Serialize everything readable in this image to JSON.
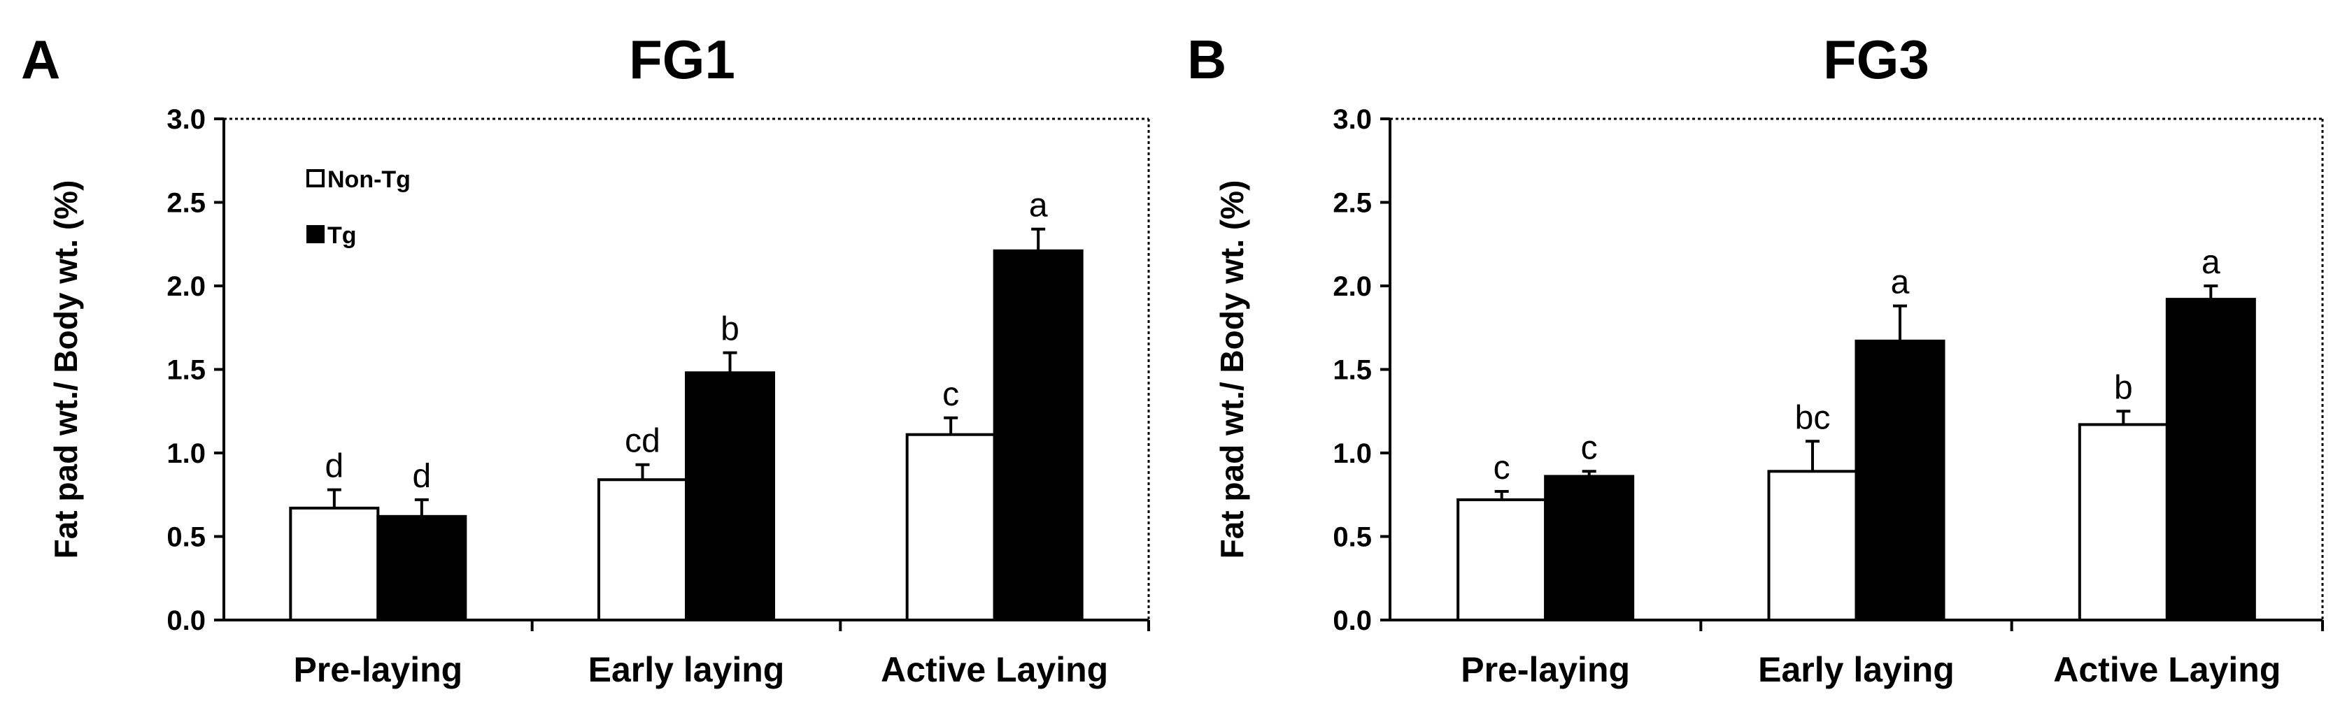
{
  "colors": {
    "non_tg_fill": "#ffffff",
    "tg_fill": "#000000",
    "axis": "#000000"
  },
  "chart_data": [
    {
      "panel_letter": "A",
      "type": "bar",
      "title": "FG1",
      "xlabel": "",
      "ylabel": "Fat pad wt./ Body wt. (%)",
      "ylim": [
        0,
        3.0
      ],
      "yticks": [
        "0.0",
        "0.5",
        "1.0",
        "1.5",
        "2.0",
        "2.5",
        "3.0"
      ],
      "grid": false,
      "legend_position": "top-left",
      "categories": [
        "Pre-laying",
        "Early laying",
        "Active Laying"
      ],
      "series": [
        {
          "name": "Non-Tg",
          "values": [
            0.67,
            0.84,
            1.11
          ],
          "errors": [
            0.11,
            0.09,
            0.1
          ],
          "letters": [
            "d",
            "cd",
            "c"
          ]
        },
        {
          "name": "Tg",
          "values": [
            0.62,
            1.48,
            2.21
          ],
          "errors": [
            0.1,
            0.12,
            0.13
          ],
          "letters": [
            "d",
            "b",
            "a"
          ]
        }
      ]
    },
    {
      "panel_letter": "B",
      "type": "bar",
      "title": "FG3",
      "xlabel": "",
      "ylabel": "Fat pad wt./ Body wt. (%)",
      "ylim": [
        0,
        3.0
      ],
      "yticks": [
        "0.0",
        "0.5",
        "1.0",
        "1.5",
        "2.0",
        "2.5",
        "3.0"
      ],
      "grid": false,
      "categories": [
        "Pre-laying",
        "Early laying",
        "Active Laying"
      ],
      "series": [
        {
          "name": "Non-Tg",
          "values": [
            0.72,
            0.89,
            1.17
          ],
          "errors": [
            0.05,
            0.18,
            0.08
          ],
          "letters": [
            "c",
            "bc",
            "b"
          ]
        },
        {
          "name": "Tg",
          "values": [
            0.86,
            1.67,
            1.92
          ],
          "errors": [
            0.03,
            0.21,
            0.08
          ],
          "letters": [
            "c",
            "a",
            "a"
          ]
        }
      ]
    }
  ]
}
